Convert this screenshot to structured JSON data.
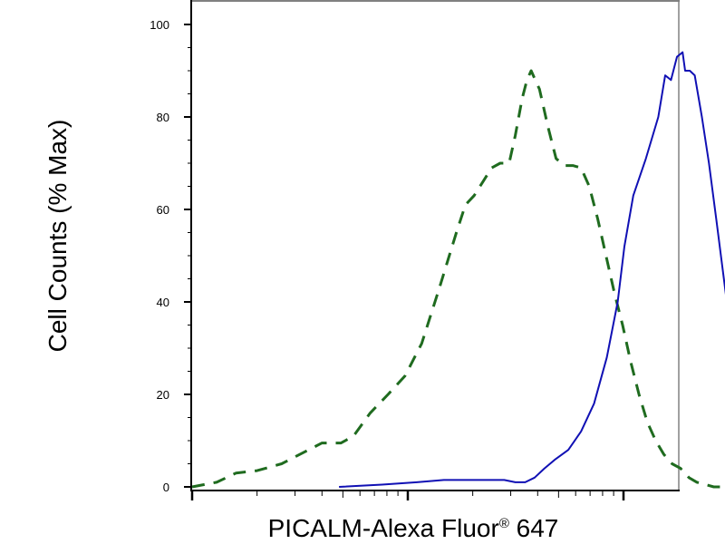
{
  "chart_data": {
    "type": "line",
    "title": "",
    "xlabel": "PICALM-Alexa Fluor",
    "xlabel_superscript": "®",
    "xlabel_suffix": " 647",
    "ylabel": "Cell Counts (% Max)",
    "x_scale": "log",
    "xlim": [
      1,
      1100
    ],
    "ylim": [
      0,
      105
    ],
    "y_ticks": [
      0,
      20,
      40,
      60,
      80,
      100
    ],
    "y_tick_labels": [
      "0",
      "20",
      "40",
      "60",
      "80",
      "100"
    ],
    "x_tick_labels": [],
    "grid": false,
    "legend": "none",
    "series": [
      {
        "style": "dashed",
        "color": "#1f6b1f",
        "points": [
          [
            1.0,
            0
          ],
          [
            1.3,
            1
          ],
          [
            1.6,
            3
          ],
          [
            2.0,
            3.5
          ],
          [
            2.6,
            5
          ],
          [
            3.3,
            7.5
          ],
          [
            4.0,
            9.5
          ],
          [
            4.9,
            9.5
          ],
          [
            5.6,
            11
          ],
          [
            6.7,
            16
          ],
          [
            8.1,
            20
          ],
          [
            9.7,
            24
          ],
          [
            11.6,
            31
          ],
          [
            14,
            43
          ],
          [
            16.8,
            55
          ],
          [
            18.5,
            61
          ],
          [
            20.3,
            63
          ],
          [
            22.3,
            66
          ],
          [
            24.5,
            69
          ],
          [
            26.8,
            70
          ],
          [
            29.5,
            70
          ],
          [
            31.5,
            76
          ],
          [
            33.9,
            84
          ],
          [
            35.7,
            88
          ],
          [
            37.3,
            90
          ],
          [
            40.8,
            86
          ],
          [
            44.6,
            78
          ],
          [
            48.7,
            71
          ],
          [
            53.2,
            69.5
          ],
          [
            58.2,
            69.5
          ],
          [
            63.5,
            69
          ],
          [
            69.4,
            65
          ],
          [
            75.9,
            58
          ],
          [
            83,
            50
          ],
          [
            90.7,
            42
          ],
          [
            99,
            35
          ],
          [
            108,
            27
          ],
          [
            118,
            20
          ],
          [
            129,
            14
          ],
          [
            141,
            10
          ],
          [
            154,
            7
          ],
          [
            168,
            5
          ],
          [
            184,
            4
          ],
          [
            201,
            2
          ],
          [
            219,
            1
          ],
          [
            240,
            0.5
          ],
          [
            262,
            0
          ],
          [
            319,
            0
          ],
          [
            349,
            0
          ],
          [
            371,
            0
          ]
        ]
      },
      {
        "style": "solid",
        "color": "#1010b4",
        "points": [
          [
            4.8,
            0
          ],
          [
            7.6,
            0.5
          ],
          [
            11,
            1
          ],
          [
            14.7,
            1.5
          ],
          [
            19.5,
            1.5
          ],
          [
            23.4,
            1.5
          ],
          [
            28,
            1.5
          ],
          [
            31.5,
            1
          ],
          [
            35,
            1
          ],
          [
            38.7,
            2
          ],
          [
            43,
            4
          ],
          [
            48.4,
            6
          ],
          [
            55.5,
            8
          ],
          [
            63.6,
            12
          ],
          [
            73,
            18
          ],
          [
            83.7,
            28
          ],
          [
            94,
            40
          ],
          [
            101,
            52
          ],
          [
            111,
            63
          ],
          [
            127,
            71
          ],
          [
            145,
            80
          ],
          [
            156,
            89
          ],
          [
            166,
            88
          ],
          [
            177,
            93
          ],
          [
            188,
            94
          ],
          [
            193,
            90
          ],
          [
            203,
            90
          ],
          [
            214,
            89
          ],
          [
            231,
            80
          ],
          [
            249,
            70
          ],
          [
            269,
            58
          ],
          [
            290,
            46
          ],
          [
            313,
            34
          ],
          [
            338,
            25
          ],
          [
            365,
            16
          ],
          [
            394,
            10
          ],
          [
            425,
            6
          ],
          [
            459,
            3.5
          ],
          [
            496,
            2.5
          ],
          [
            536,
            2
          ],
          [
            578,
            1
          ],
          [
            624,
            0.5
          ],
          [
            674,
            0
          ],
          [
            728,
            0
          ]
        ]
      }
    ]
  }
}
